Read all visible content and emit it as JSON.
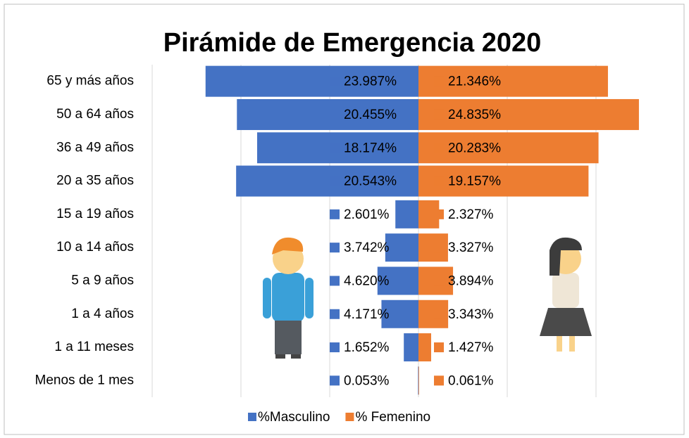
{
  "chart_data": {
    "type": "pyramid",
    "title": "Pirámide de Emergencia 2020",
    "categories": [
      "65 y más años",
      "50  a  64  años",
      "36  a  49  años",
      "20  a  35  años",
      "15  a  19  años",
      "10  a  14  años",
      "5  a  9  años",
      "1  a  4  años",
      "1  a  11 meses",
      "Menos de 1 mes"
    ],
    "series": [
      {
        "name": "%Masculino",
        "color": "#4472c4",
        "side": "left",
        "values": [
          23.987,
          20.455,
          18.174,
          20.543,
          2.601,
          3.742,
          4.62,
          4.171,
          1.652,
          0.053
        ],
        "value_labels": [
          "23.987%",
          "20.455%",
          "18.174%",
          "20.543%",
          "2.601%",
          "3.742%",
          "4.620%",
          "4.171%",
          "1.652%",
          "0.053%"
        ]
      },
      {
        "name": "% Femenino",
        "color": "#ed7d31",
        "side": "right",
        "values": [
          21.346,
          24.835,
          20.283,
          19.157,
          2.327,
          3.327,
          3.894,
          3.343,
          1.427,
          0.061
        ],
        "value_labels": [
          "21.346%",
          "24.835%",
          "20.283%",
          "19.157%",
          "2.327%",
          "3.327%",
          "3.894%",
          "3.343%",
          "1.427%",
          "0.061%"
        ]
      }
    ],
    "xlim": [
      -30,
      30
    ],
    "xticks": [
      -20,
      -10,
      0,
      10,
      20
    ],
    "grid": true,
    "legend": "bottom"
  }
}
